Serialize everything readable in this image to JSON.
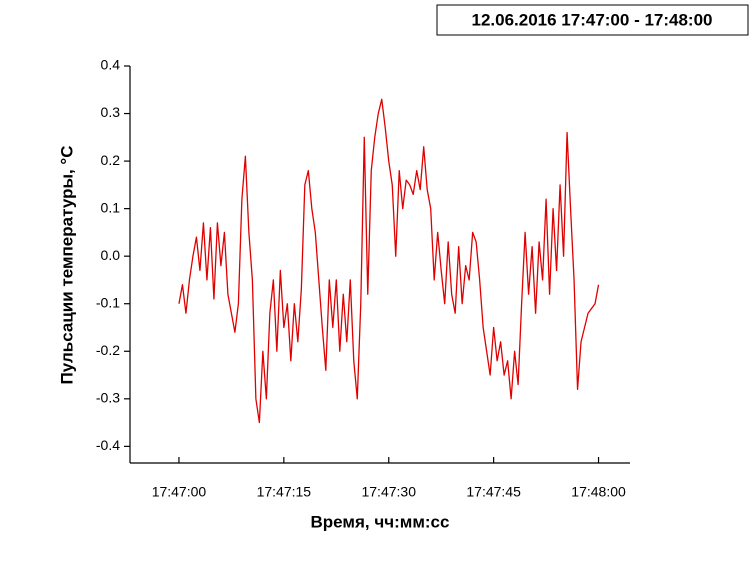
{
  "chart_data": {
    "type": "line",
    "title": "12.06.2016 17:47:00 - 17:48:00",
    "x_label": "Время, чч:мм:сс",
    "y_label": "Пульсации температуры, °С",
    "x": [
      0,
      0.5,
      1,
      1.5,
      2,
      2.5,
      3,
      3.5,
      4,
      4.5,
      5,
      5.5,
      6,
      6.5,
      7,
      7.5,
      8,
      8.5,
      9,
      9.5,
      10,
      10.5,
      11,
      11.5,
      12,
      12.5,
      13,
      13.5,
      14,
      14.5,
      15,
      15.5,
      16,
      16.5,
      17,
      17.5,
      18,
      18.5,
      19,
      19.5,
      20,
      20.5,
      21,
      21.5,
      22,
      22.5,
      23,
      23.5,
      24,
      24.5,
      25,
      25.5,
      26,
      26.5,
      27,
      27.5,
      28,
      28.5,
      29,
      29.5,
      30,
      30.5,
      31,
      31.5,
      32,
      32.5,
      33,
      33.5,
      34,
      34.5,
      35,
      35.5,
      36,
      36.5,
      37,
      37.5,
      38,
      38.5,
      39,
      39.5,
      40,
      40.5,
      41,
      41.5,
      42,
      42.5,
      43,
      43.5,
      44,
      44.5,
      45,
      45.5,
      46,
      46.5,
      47,
      47.5,
      48,
      48.5,
      49,
      49.5,
      50,
      50.5,
      51,
      51.5,
      52,
      52.5,
      53,
      53.5,
      54,
      54.5,
      55,
      55.5,
      56,
      56.5,
      57,
      57.5,
      58,
      58.5,
      59,
      59.5,
      60
    ],
    "series": [
      {
        "color": "#e00000",
        "values": [
          -0.1,
          -0.06,
          -0.12,
          -0.05,
          0.0,
          0.04,
          -0.03,
          0.07,
          -0.05,
          0.06,
          -0.09,
          0.07,
          -0.02,
          0.05,
          -0.08,
          -0.12,
          -0.16,
          -0.1,
          0.12,
          0.21,
          0.05,
          -0.05,
          -0.3,
          -0.35,
          -0.2,
          -0.3,
          -0.12,
          -0.05,
          -0.2,
          -0.03,
          -0.15,
          -0.1,
          -0.22,
          -0.1,
          -0.18,
          -0.07,
          0.15,
          0.18,
          0.1,
          0.05,
          -0.05,
          -0.15,
          -0.24,
          -0.05,
          -0.15,
          -0.05,
          -0.2,
          -0.08,
          -0.18,
          -0.05,
          -0.22,
          -0.3,
          -0.1,
          0.25,
          -0.08,
          0.18,
          0.25,
          0.3,
          0.33,
          0.27,
          0.2,
          0.15,
          0.0,
          0.18,
          0.1,
          0.16,
          0.15,
          0.13,
          0.18,
          0.14,
          0.23,
          0.14,
          0.1,
          -0.05,
          0.05,
          -0.03,
          -0.1,
          0.03,
          -0.08,
          -0.12,
          0.02,
          -0.1,
          -0.02,
          -0.05,
          0.05,
          0.03,
          -0.05,
          -0.15,
          -0.2,
          -0.25,
          -0.15,
          -0.22,
          -0.18,
          -0.25,
          -0.22,
          -0.3,
          -0.2,
          -0.27,
          -0.1,
          0.05,
          -0.08,
          0.02,
          -0.12,
          0.03,
          -0.05,
          0.12,
          -0.08,
          0.1,
          -0.03,
          0.15,
          0.0,
          0.26,
          0.1,
          -0.05,
          -0.28,
          -0.18,
          -0.15,
          -0.12,
          -0.11,
          -0.1,
          -0.06
        ]
      }
    ],
    "xlim": [
      -7,
      64.5
    ],
    "ylim": [
      -0.435,
      0.4
    ],
    "xticks": [
      {
        "value": 0,
        "label": "17:47:00"
      },
      {
        "value": 15,
        "label": "17:47:15"
      },
      {
        "value": 30,
        "label": "17:47:30"
      },
      {
        "value": 45,
        "label": "17:47:45"
      },
      {
        "value": 60,
        "label": "17:48:00"
      }
    ],
    "yticks": [
      -0.4,
      -0.3,
      -0.2,
      -0.1,
      {
        "value": 0,
        "label": "0.0"
      },
      0.1,
      0.2,
      0.3,
      0.4
    ]
  }
}
